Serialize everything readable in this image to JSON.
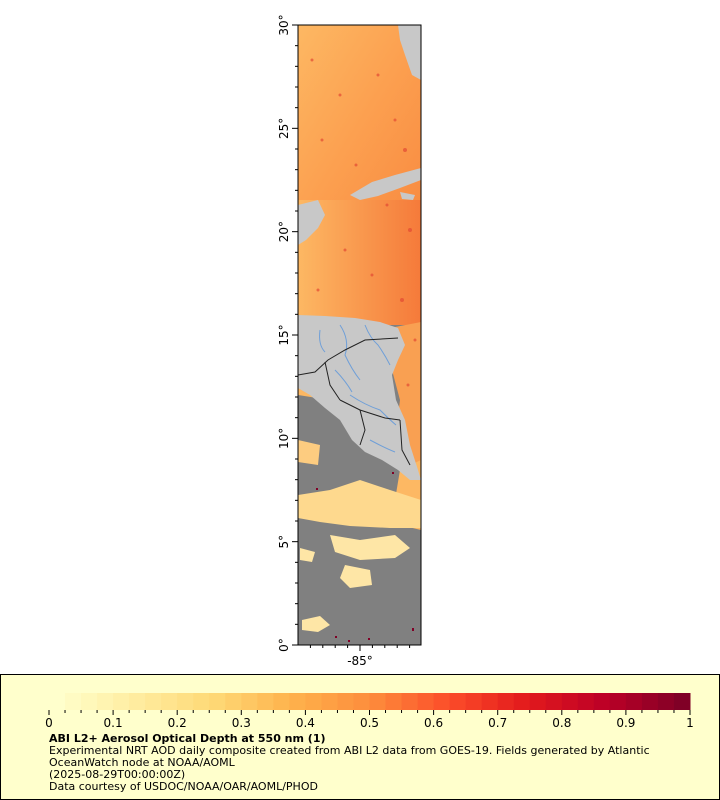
{
  "map": {
    "lat_ticks": [
      {
        "value": 30,
        "label": "30°"
      },
      {
        "value": 25,
        "label": "25°"
      },
      {
        "value": 20,
        "label": "20°"
      },
      {
        "value": 15,
        "label": "15°"
      },
      {
        "value": 10,
        "label": "10°"
      },
      {
        "value": 5,
        "label": "5°"
      },
      {
        "value": 0,
        "label": "0°"
      }
    ],
    "lon_ticks": [
      {
        "value": -85,
        "label": "-85°"
      }
    ],
    "lat_range": [
      0,
      30
    ],
    "colors": {
      "land": "#c8c8c8",
      "nodata": "#808080",
      "low_aod": "#fed98e",
      "mid_aod": "#fdae61",
      "high_aod": "#f46d43",
      "rivers": "#6f9fd8",
      "borders": "#222222"
    }
  },
  "legend": {
    "colorbar": {
      "min": 0,
      "max": 1,
      "colors": [
        "#ffffcc",
        "#ffeda0",
        "#fed976",
        "#feb24c",
        "#fd8d3c",
        "#fc4e2a",
        "#e31a1c",
        "#bd0026",
        "#800026"
      ],
      "tick_labels": [
        "0",
        "0.1",
        "0.2",
        "0.3",
        "0.4",
        "0.5",
        "0.6",
        "0.7",
        "0.8",
        "0.9",
        "1"
      ]
    },
    "title": "ABI L2+ Aerosol Optical Depth at 550 nm (1)",
    "description": "Experimental NRT AOD daily composite created from ABI L2 data from GOES-19. Fields generated by Atlantic OceanWatch node at NOAA/AOML",
    "time": "(2025-08-29T00:00:00Z)",
    "credit": "Data courtesy of USDOC/NOAA/OAR/AOML/PHOD"
  }
}
